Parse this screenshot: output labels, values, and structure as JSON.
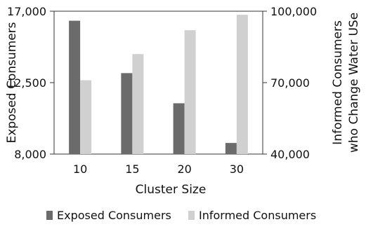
{
  "chart_data": {
    "type": "bar",
    "title": "",
    "xlabel": "Cluster Size",
    "ylabel_left": "Exposed Consumers",
    "ylabel_right": [
      "Informed Consumers",
      "who Change Water USe"
    ],
    "categories": [
      "10",
      "15",
      "20",
      "30"
    ],
    "left_axis": {
      "ylim": [
        8000,
        17000
      ],
      "ticks": [
        8000,
        12500,
        17000
      ],
      "tick_labels": [
        "8,000",
        "12,500",
        "17,000"
      ]
    },
    "right_axis": {
      "ylim": [
        40000,
        100000
      ],
      "ticks": [
        40000,
        70000,
        100000
      ],
      "tick_labels": [
        "40,000",
        "70,000",
        "100,000"
      ]
    },
    "series": [
      {
        "name": "Exposed Consumers",
        "axis": "left",
        "color": "#6b6b6b",
        "values": [
          16400,
          13100,
          11200,
          8700
        ]
      },
      {
        "name": "Informed Consumers",
        "axis": "right",
        "color": "#d0d0d0",
        "values": [
          71000,
          82000,
          92000,
          98500
        ]
      }
    ],
    "legend_position": "bottom",
    "grid": false
  }
}
